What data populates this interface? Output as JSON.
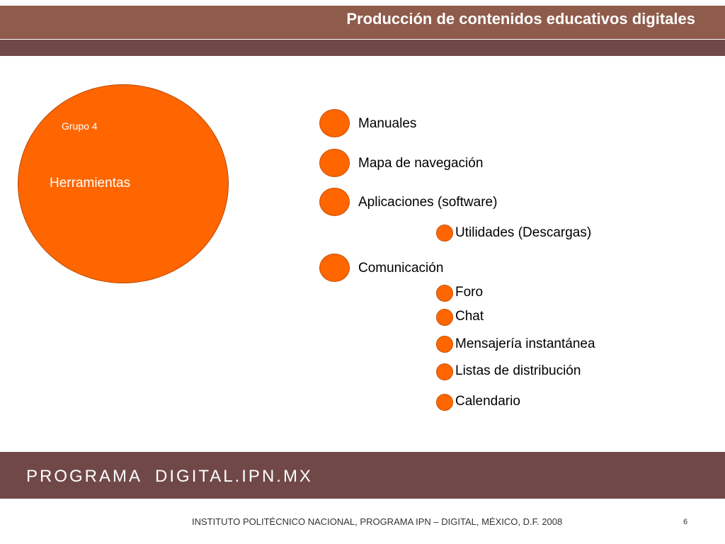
{
  "header": {
    "title": "Producción de contenidos educativos digitales"
  },
  "diagram": {
    "group_label": "Grupo 4",
    "center_label": "Herramientas",
    "items": [
      {
        "label": "Manuales",
        "level": 1
      },
      {
        "label": "Mapa de navegación",
        "level": 1
      },
      {
        "label": "Aplicaciones (software)",
        "level": 1
      },
      {
        "label": "Utilidades (Descargas)",
        "level": 2
      },
      {
        "label": "Comunicación",
        "level": 1
      },
      {
        "label": "Foro",
        "level": 2
      },
      {
        "label": "Chat",
        "level": 2
      },
      {
        "label": "Mensajería instantánea",
        "level": 2
      },
      {
        "label": "Listas de distribución",
        "level": 2
      },
      {
        "label": "Calendario",
        "level": 2
      }
    ]
  },
  "footer": {
    "brand": "PROGRAMA  DIGITAL.IPN.MX",
    "note": "INSTITUTO POLITÉCNICO NACIONAL, PROGRAMA IPN – DIGITAL, MÉXICO, D.F. 2008",
    "page_number": "6"
  },
  "colors": {
    "accent": "#ff6600",
    "header_bar": "#8f5b4b",
    "band": "#714848"
  }
}
